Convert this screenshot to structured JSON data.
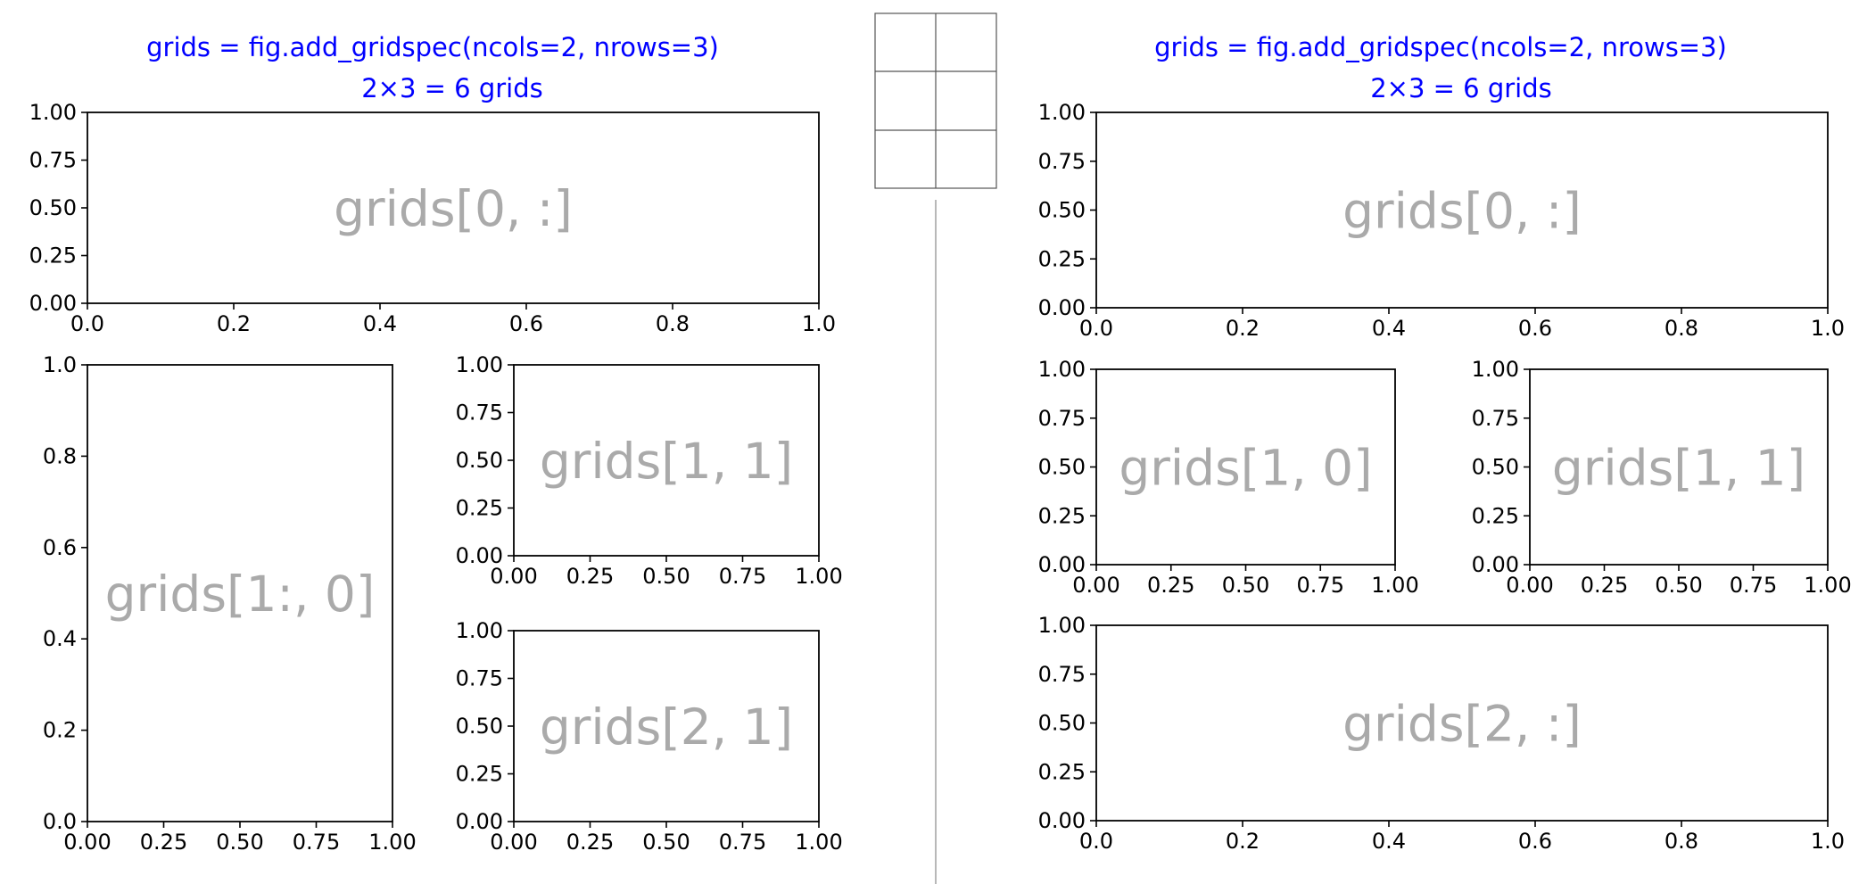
{
  "colors": {
    "title": "#0000ff",
    "label": "#aaaaaa",
    "axis": "#000000",
    "divider": "#888888",
    "mini_grid": "#555555"
  },
  "left": {
    "title_line1": "grids = fig.add_gridspec(ncols=2, nrows=3)",
    "title_line2": "2×3 = 6 grids",
    "axes": [
      {
        "label": "grids[0, :]",
        "xticks": [
          "0.0",
          "0.2",
          "0.4",
          "0.6",
          "0.8",
          "1.0"
        ],
        "yticks": [
          "0.00",
          "0.25",
          "0.50",
          "0.75",
          "1.00"
        ]
      },
      {
        "label": "grids[1:, 0]",
        "xticks": [
          "0.00",
          "0.25",
          "0.50",
          "0.75",
          "1.00"
        ],
        "yticks": [
          "0.0",
          "0.2",
          "0.4",
          "0.6",
          "0.8",
          "1.0"
        ]
      },
      {
        "label": "grids[1, 1]",
        "xticks": [
          "0.00",
          "0.25",
          "0.50",
          "0.75",
          "1.00"
        ],
        "yticks": [
          "0.00",
          "0.25",
          "0.50",
          "0.75",
          "1.00"
        ]
      },
      {
        "label": "grids[2, 1]",
        "xticks": [
          "0.00",
          "0.25",
          "0.50",
          "0.75",
          "1.00"
        ],
        "yticks": [
          "0.00",
          "0.25",
          "0.50",
          "0.75",
          "1.00"
        ]
      }
    ]
  },
  "right": {
    "title_line1": "grids = fig.add_gridspec(ncols=2, nrows=3)",
    "title_line2": "2×3 = 6 grids",
    "axes": [
      {
        "label": "grids[0, :]",
        "xticks": [
          "0.0",
          "0.2",
          "0.4",
          "0.6",
          "0.8",
          "1.0"
        ],
        "yticks": [
          "0.00",
          "0.25",
          "0.50",
          "0.75",
          "1.00"
        ]
      },
      {
        "label": "grids[1, 0]",
        "xticks": [
          "0.00",
          "0.25",
          "0.50",
          "0.75",
          "1.00"
        ],
        "yticks": [
          "0.00",
          "0.25",
          "0.50",
          "0.75",
          "1.00"
        ]
      },
      {
        "label": "grids[1, 1]",
        "xticks": [
          "0.00",
          "0.25",
          "0.50",
          "0.75",
          "1.00"
        ],
        "yticks": [
          "0.00",
          "0.25",
          "0.50",
          "0.75",
          "1.00"
        ]
      },
      {
        "label": "grids[2, :]",
        "xticks": [
          "0.0",
          "0.2",
          "0.4",
          "0.6",
          "0.8",
          "1.0"
        ],
        "yticks": [
          "0.00",
          "0.25",
          "0.50",
          "0.75",
          "1.00"
        ]
      }
    ]
  },
  "mini_grid": {
    "cols": 2,
    "rows": 3
  }
}
